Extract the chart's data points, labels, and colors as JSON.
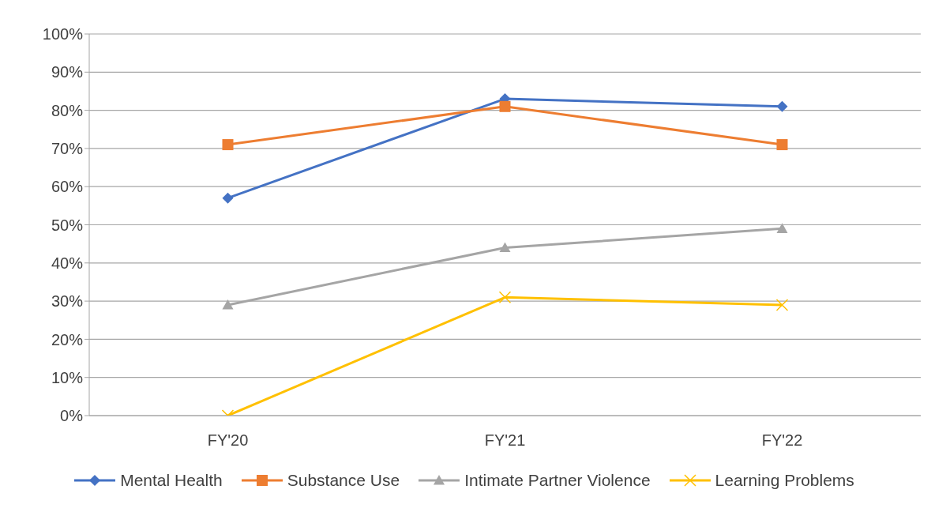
{
  "chart_data": {
    "type": "line",
    "categories": [
      "FY'20",
      "FY'21",
      "FY'22"
    ],
    "series": [
      {
        "name": "Mental Health",
        "color": "#4472c4",
        "marker": "diamond",
        "values": [
          57,
          83,
          81
        ]
      },
      {
        "name": "Substance Use",
        "color": "#ed7d31",
        "marker": "square",
        "values": [
          71,
          81,
          71
        ]
      },
      {
        "name": "Intimate Partner Violence",
        "color": "#a5a5a5",
        "marker": "triangle",
        "values": [
          29,
          44,
          49
        ]
      },
      {
        "name": "Learning Problems",
        "color": "#ffc000",
        "marker": "cross",
        "values": [
          0,
          31,
          29
        ]
      }
    ],
    "ylim": [
      0,
      100
    ],
    "yticks": [
      {
        "value": 0,
        "label": "0%"
      },
      {
        "value": 10,
        "label": "10%"
      },
      {
        "value": 20,
        "label": "20%"
      },
      {
        "value": 30,
        "label": "30%"
      },
      {
        "value": 40,
        "label": "40%"
      },
      {
        "value": 50,
        "label": "50%"
      },
      {
        "value": 60,
        "label": "60%"
      },
      {
        "value": 70,
        "label": "70%"
      },
      {
        "value": 80,
        "label": "80%"
      },
      {
        "value": 90,
        "label": "90%"
      },
      {
        "value": 100,
        "label": "100%"
      }
    ],
    "grid": "y",
    "legend": "bottom"
  }
}
